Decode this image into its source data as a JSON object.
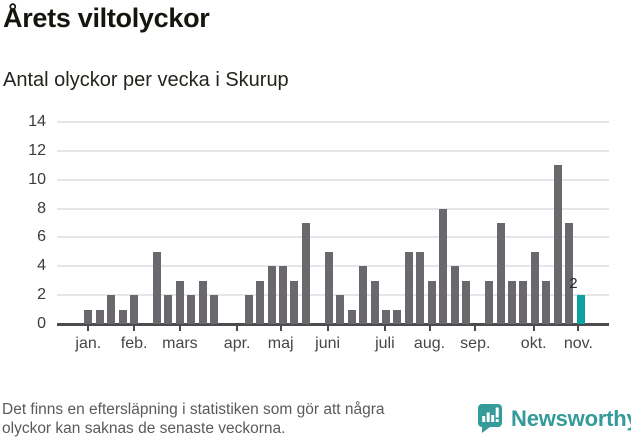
{
  "header": {
    "title": "Årets viltolyckor",
    "subtitle": "Antal olyckor per vecka i Skurup"
  },
  "chart_data": {
    "type": "bar",
    "title": "Årets viltolyckor",
    "subtitle": "Antal olyckor per vecka i Skurup",
    "x_unit": "vecka",
    "weeks": "1-44",
    "values": [
      1,
      1,
      2,
      1,
      2,
      0,
      5,
      2,
      3,
      2,
      3,
      2,
      0,
      0,
      2,
      3,
      4,
      4,
      3,
      7,
      0,
      5,
      2,
      1,
      4,
      3,
      1,
      1,
      5,
      5,
      3,
      8,
      4,
      3,
      0,
      3,
      7,
      3,
      3,
      5,
      3,
      11,
      7,
      2
    ],
    "highlight_last": true,
    "highlight_label": "2",
    "y_ticks": [
      0,
      2,
      4,
      6,
      8,
      10,
      12,
      14
    ],
    "ylim": [
      0,
      14
    ],
    "grid": "horizontal",
    "months": [
      {
        "label": "jan.",
        "week": 1
      },
      {
        "label": "feb.",
        "week": 5
      },
      {
        "label": "mars",
        "week": 9
      },
      {
        "label": "apr.",
        "week": 14
      },
      {
        "label": "maj",
        "week": 17.8
      },
      {
        "label": "juni",
        "week": 21.9
      },
      {
        "label": "juli",
        "week": 26.9
      },
      {
        "label": "aug.",
        "week": 30.8
      },
      {
        "label": "sep.",
        "week": 34.8
      },
      {
        "label": "okt.",
        "week": 39.9
      },
      {
        "label": "nov.",
        "week": 43.8
      }
    ],
    "colors": {
      "bar": "#6a676d",
      "highlight": "#0ba2a1"
    }
  },
  "footer": {
    "note_line1": "Det finns en eftersläpning i statistiken som gör att några",
    "note_line2": "olyckor kan saknas de senaste veckorna.",
    "brand": "Newsworthy",
    "brand_color": "#349a9a"
  }
}
